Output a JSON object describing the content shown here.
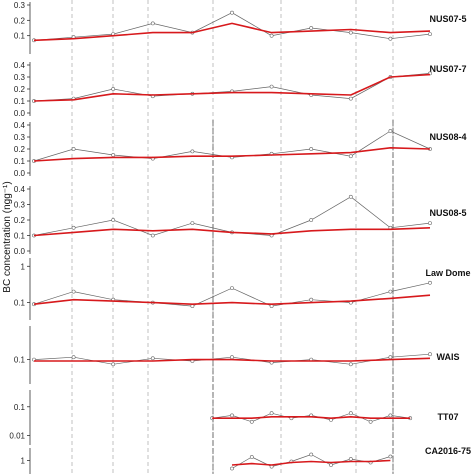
{
  "chart_data": {
    "type": "line",
    "ylabel": "BC concentration (ngg⁻¹)",
    "grid": "dashed vertical reference lines",
    "x_range": [
      0,
      1
    ],
    "colors": {
      "raw": "#666666",
      "smooth": "#d7191c",
      "dashed_line": "#999999",
      "solid_line": "#555555"
    },
    "panels": [
      {
        "name": "NUS07-5",
        "scale": "linear",
        "ylim": [
          0,
          0.3
        ],
        "yticks": [
          {
            "v": 0.1,
            "label": "0.1"
          },
          {
            "v": 0.2,
            "label": "0.2"
          },
          {
            "v": 0.3,
            "label": "0.3"
          }
        ],
        "x": [
          0.0,
          0.1,
          0.2,
          0.3,
          0.4,
          0.5,
          0.6,
          0.7,
          0.8,
          0.9,
          1.0
        ],
        "raw": [
          0.07,
          0.09,
          0.11,
          0.18,
          0.12,
          0.25,
          0.1,
          0.15,
          0.12,
          0.08,
          0.11
        ],
        "smooth": [
          0.07,
          0.08,
          0.1,
          0.12,
          0.12,
          0.18,
          0.12,
          0.13,
          0.14,
          0.12,
          0.13
        ]
      },
      {
        "name": "NUS07-7",
        "scale": "linear",
        "ylim": [
          0,
          0.4
        ],
        "yticks": [
          {
            "v": 0.0,
            "label": "0.0"
          },
          {
            "v": 0.1,
            "label": "0.1"
          },
          {
            "v": 0.2,
            "label": "0.2"
          },
          {
            "v": 0.3,
            "label": "0.3"
          },
          {
            "v": 0.4,
            "label": "0.4"
          }
        ],
        "x": [
          0.0,
          0.1,
          0.2,
          0.3,
          0.4,
          0.5,
          0.6,
          0.7,
          0.8,
          0.9,
          1.0
        ],
        "raw": [
          0.1,
          0.12,
          0.2,
          0.14,
          0.16,
          0.18,
          0.22,
          0.15,
          0.12,
          0.3,
          0.33
        ],
        "smooth": [
          0.1,
          0.11,
          0.16,
          0.15,
          0.16,
          0.17,
          0.17,
          0.16,
          0.15,
          0.3,
          0.32
        ]
      },
      {
        "name": "NUS08-4",
        "scale": "linear",
        "ylim": [
          0,
          0.4
        ],
        "yticks": [
          {
            "v": 0.0,
            "label": "0.0"
          },
          {
            "v": 0.1,
            "label": "0.1"
          },
          {
            "v": 0.2,
            "label": "0.2"
          },
          {
            "v": 0.3,
            "label": "0.3"
          },
          {
            "v": 0.4,
            "label": "0.4"
          }
        ],
        "x": [
          0.0,
          0.1,
          0.2,
          0.3,
          0.4,
          0.5,
          0.6,
          0.7,
          0.8,
          0.9,
          1.0
        ],
        "raw": [
          0.1,
          0.2,
          0.15,
          0.12,
          0.18,
          0.13,
          0.16,
          0.2,
          0.14,
          0.35,
          0.2
        ],
        "smooth": [
          0.1,
          0.12,
          0.13,
          0.13,
          0.14,
          0.14,
          0.15,
          0.16,
          0.17,
          0.21,
          0.2
        ]
      },
      {
        "name": "NUS08-5",
        "scale": "linear",
        "ylim": [
          0,
          0.4
        ],
        "yticks": [
          {
            "v": 0.0,
            "label": "0.0"
          },
          {
            "v": 0.1,
            "label": "0.1"
          },
          {
            "v": 0.2,
            "label": "0.2"
          },
          {
            "v": 0.3,
            "label": "0.3"
          },
          {
            "v": 0.4,
            "label": "0.4"
          }
        ],
        "x": [
          0.0,
          0.1,
          0.2,
          0.3,
          0.4,
          0.5,
          0.6,
          0.7,
          0.8,
          0.9,
          1.0
        ],
        "raw": [
          0.1,
          0.15,
          0.2,
          0.1,
          0.18,
          0.12,
          0.1,
          0.2,
          0.35,
          0.15,
          0.18
        ],
        "smooth": [
          0.1,
          0.12,
          0.14,
          0.13,
          0.14,
          0.12,
          0.11,
          0.13,
          0.14,
          0.14,
          0.15
        ]
      },
      {
        "name": "Law Dome",
        "scale": "log",
        "ylim": [
          0.04,
          1.4
        ],
        "yticks": [
          {
            "v": 0.1,
            "label": "0.1"
          },
          {
            "v": 1,
            "label": "1"
          }
        ],
        "x": [
          0.0,
          0.1,
          0.2,
          0.3,
          0.4,
          0.5,
          0.6,
          0.7,
          0.8,
          0.9,
          1.0
        ],
        "raw": [
          0.09,
          0.2,
          0.12,
          0.1,
          0.08,
          0.25,
          0.08,
          0.12,
          0.1,
          0.2,
          0.35
        ],
        "smooth": [
          0.09,
          0.12,
          0.11,
          0.1,
          0.09,
          0.1,
          0.09,
          0.1,
          0.11,
          0.13,
          0.16
        ]
      },
      {
        "name": "WAIS",
        "scale": "log",
        "ylim": [
          0.02,
          1.0
        ],
        "yticks": [
          {
            "v": 0.1,
            "label": "0.1"
          }
        ],
        "x": [
          0.0,
          0.1,
          0.2,
          0.3,
          0.4,
          0.5,
          0.6,
          0.7,
          0.8,
          0.9,
          1.0
        ],
        "raw": [
          0.1,
          0.12,
          0.07,
          0.11,
          0.09,
          0.12,
          0.08,
          0.1,
          0.07,
          0.12,
          0.15
        ],
        "smooth": [
          0.09,
          0.09,
          0.09,
          0.09,
          0.1,
          0.1,
          0.09,
          0.09,
          0.09,
          0.1,
          0.11
        ]
      },
      {
        "name": "TT07",
        "scale": "log",
        "ylim": [
          0.006,
          0.3
        ],
        "yticks": [
          {
            "v": 0.01,
            "label": "0.01"
          },
          {
            "v": 0.1,
            "label": "0.1"
          }
        ],
        "x": [
          0.45,
          0.5,
          0.55,
          0.6,
          0.65,
          0.7,
          0.75,
          0.8,
          0.85,
          0.9,
          0.95
        ],
        "raw": [
          0.04,
          0.05,
          0.03,
          0.06,
          0.04,
          0.05,
          0.035,
          0.06,
          0.03,
          0.05,
          0.04
        ],
        "smooth": [
          0.04,
          0.04,
          0.04,
          0.045,
          0.045,
          0.045,
          0.04,
          0.045,
          0.04,
          0.04,
          0.04
        ]
      },
      {
        "name": "CA2016-75",
        "scale": "log",
        "ylim": [
          0.3,
          3.0
        ],
        "yticks": [
          {
            "v": 1,
            "label": "1"
          }
        ],
        "x": [
          0.5,
          0.55,
          0.6,
          0.65,
          0.7,
          0.75,
          0.8,
          0.85,
          0.9
        ],
        "raw": [
          0.4,
          1.5,
          0.5,
          0.9,
          2.0,
          0.6,
          1.2,
          0.8,
          1.6
        ],
        "smooth": [
          0.6,
          0.7,
          0.6,
          0.8,
          0.9,
          0.8,
          0.9,
          0.9,
          1.0
        ]
      }
    ]
  }
}
